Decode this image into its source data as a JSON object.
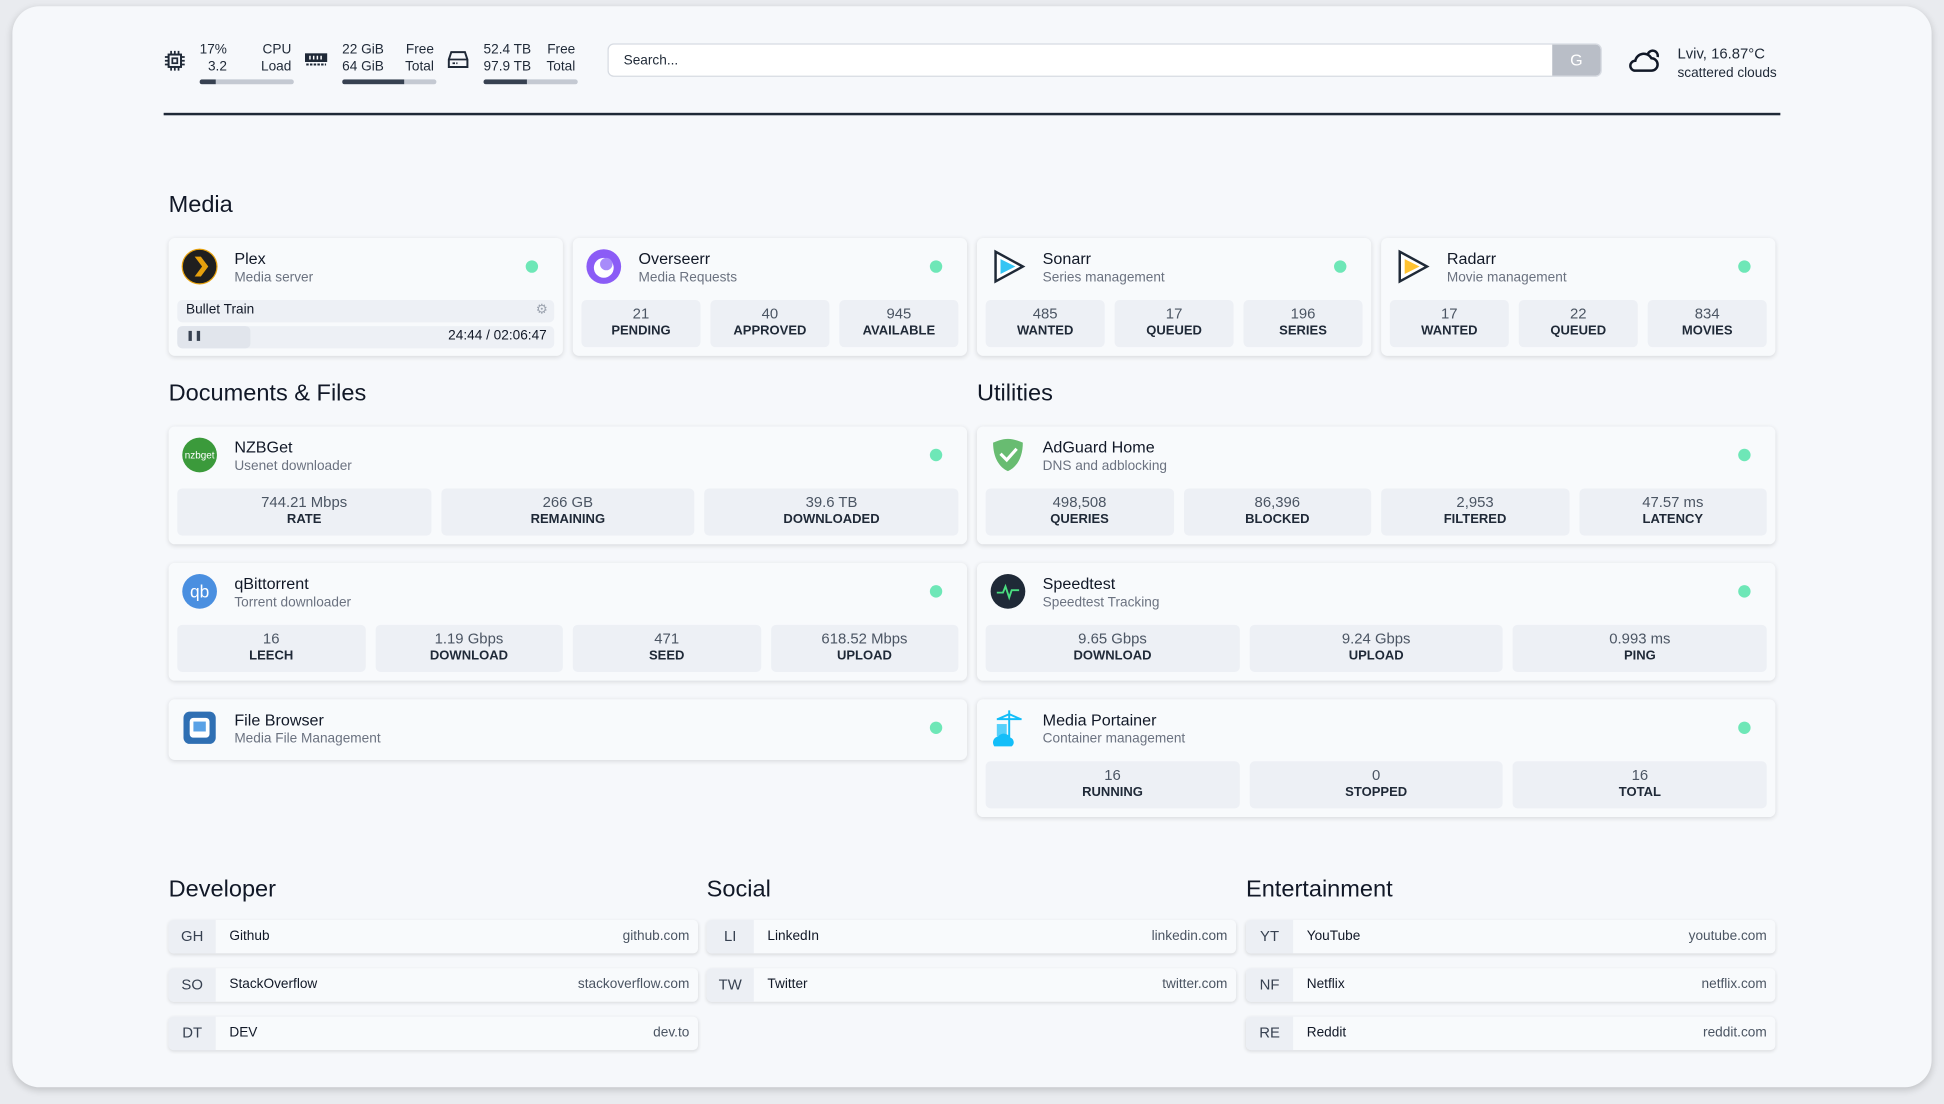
{
  "header": {
    "cpu": {
      "icon": "cpu-icon",
      "usage": "17%",
      "usage_label": "CPU",
      "load": "3.2",
      "load_label": "Load",
      "fill_percent": 17
    },
    "memory": {
      "icon": "memory-icon",
      "free": "22 GiB",
      "free_label": "Free",
      "total": "64 GiB",
      "total_label": "Total",
      "fill_percent": 66
    },
    "disk": {
      "icon": "disk-icon",
      "free": "52.4 TB",
      "free_label": "Free",
      "total": "97.9 TB",
      "total_label": "Total",
      "fill_percent": 46
    },
    "search": {
      "placeholder": "Search...",
      "button": "G"
    },
    "weather": {
      "icon": "cloud-sun-icon",
      "location_temp": "Lviv, 16.87°C",
      "condition": "scattered clouds"
    }
  },
  "sections": {
    "media": "Media",
    "documents": "Documents & Files",
    "utilities": "Utilities",
    "developer": "Developer",
    "social": "Social",
    "entertainment": "Entertainment"
  },
  "status_color": "#6ee7b7",
  "media": [
    {
      "name": "Plex",
      "desc": "Media server",
      "icon": "plex-icon",
      "now_playing": {
        "title": "Bullet Train",
        "time": "24:44 / 02:06:47",
        "progress_percent": 19.5
      }
    },
    {
      "name": "Overseerr",
      "desc": "Media Requests",
      "icon": "overseerr-icon",
      "stats": [
        {
          "v": "21",
          "l": "PENDING"
        },
        {
          "v": "40",
          "l": "APPROVED"
        },
        {
          "v": "945",
          "l": "AVAILABLE"
        }
      ]
    },
    {
      "name": "Sonarr",
      "desc": "Series management",
      "icon": "sonarr-icon",
      "stats": [
        {
          "v": "485",
          "l": "WANTED"
        },
        {
          "v": "17",
          "l": "QUEUED"
        },
        {
          "v": "196",
          "l": "SERIES"
        }
      ]
    },
    {
      "name": "Radarr",
      "desc": "Movie management",
      "icon": "radarr-icon",
      "stats": [
        {
          "v": "17",
          "l": "WANTED"
        },
        {
          "v": "22",
          "l": "QUEUED"
        },
        {
          "v": "834",
          "l": "MOVIES"
        }
      ]
    }
  ],
  "documents": [
    {
      "name": "NZBGet",
      "desc": "Usenet downloader",
      "icon": "nzbget-icon",
      "stats": [
        {
          "v": "744.21 Mbps",
          "l": "RATE"
        },
        {
          "v": "266 GB",
          "l": "REMAINING"
        },
        {
          "v": "39.6 TB",
          "l": "DOWNLOADED"
        }
      ]
    },
    {
      "name": "qBittorrent",
      "desc": "Torrent downloader",
      "icon": "qbittorrent-icon",
      "stats": [
        {
          "v": "16",
          "l": "LEECH"
        },
        {
          "v": "1.19 Gbps",
          "l": "DOWNLOAD"
        },
        {
          "v": "471",
          "l": "SEED"
        },
        {
          "v": "618.52 Mbps",
          "l": "UPLOAD"
        }
      ]
    },
    {
      "name": "File Browser",
      "desc": "Media File Management",
      "icon": "filebrowser-icon"
    }
  ],
  "utilities": [
    {
      "name": "AdGuard Home",
      "desc": "DNS and adblocking",
      "icon": "adguard-icon",
      "stats": [
        {
          "v": "498,508",
          "l": "QUERIES"
        },
        {
          "v": "86,396",
          "l": "BLOCKED"
        },
        {
          "v": "2,953",
          "l": "FILTERED"
        },
        {
          "v": "47.57 ms",
          "l": "LATENCY"
        }
      ]
    },
    {
      "name": "Speedtest",
      "desc": "Speedtest Tracking",
      "icon": "speedtest-icon",
      "stats": [
        {
          "v": "9.65 Gbps",
          "l": "DOWNLOAD"
        },
        {
          "v": "9.24 Gbps",
          "l": "UPLOAD"
        },
        {
          "v": "0.993 ms",
          "l": "PING"
        }
      ]
    },
    {
      "name": "Media Portainer",
      "desc": "Container management",
      "icon": "portainer-icon",
      "stats": [
        {
          "v": "16",
          "l": "RUNNING"
        },
        {
          "v": "0",
          "l": "STOPPED"
        },
        {
          "v": "16",
          "l": "TOTAL"
        }
      ]
    }
  ],
  "bookmarks": {
    "developer": [
      {
        "abbr": "GH",
        "name": "Github",
        "url": "github.com"
      },
      {
        "abbr": "SO",
        "name": "StackOverflow",
        "url": "stackoverflow.com"
      },
      {
        "abbr": "DT",
        "name": "DEV",
        "url": "dev.to"
      }
    ],
    "social": [
      {
        "abbr": "LI",
        "name": "LinkedIn",
        "url": "linkedin.com"
      },
      {
        "abbr": "TW",
        "name": "Twitter",
        "url": "twitter.com"
      }
    ],
    "entertainment": [
      {
        "abbr": "YT",
        "name": "YouTube",
        "url": "youtube.com"
      },
      {
        "abbr": "NF",
        "name": "Netflix",
        "url": "netflix.com"
      },
      {
        "abbr": "RE",
        "name": "Reddit",
        "url": "reddit.com"
      }
    ]
  }
}
